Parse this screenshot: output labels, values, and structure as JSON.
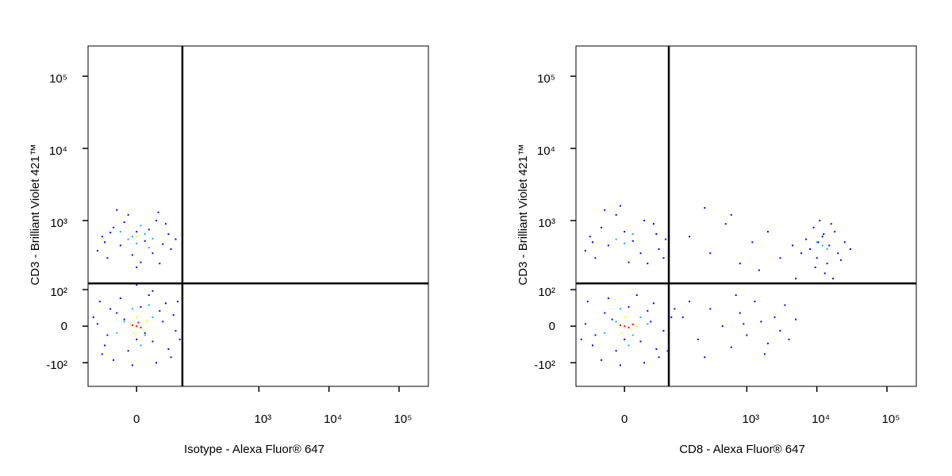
{
  "chart_data": [
    {
      "type": "scatter",
      "xlabel": "Isotype - Alexa Fluor® 647",
      "ylabel": "CD3 - Brilliant Violet 421™",
      "xlim": [
        -85,
        262144
      ],
      "ylim": [
        -230,
        262144
      ],
      "xticks": [
        0,
        {
          "value": 1000,
          "label": "10³"
        },
        {
          "value": 10000,
          "label": "10⁴"
        },
        {
          "value": 100000,
          "label": "10⁵"
        }
      ],
      "yticks": [
        {
          "value": -100,
          "label": "-10²"
        },
        0,
        {
          "value": 100,
          "label": "10²"
        },
        {
          "value": 1000,
          "label": "10³"
        },
        {
          "value": 10000,
          "label": "10⁴"
        },
        {
          "value": 100000,
          "label": "10⁵"
        }
      ],
      "gates": {
        "x": 77,
        "y": 126
      },
      "series": [
        {
          "color": "#0000ff",
          "x": [
            -40,
            -25,
            -10,
            5,
            20,
            35,
            50,
            -55,
            -30,
            15,
            40,
            -15,
            60,
            -45,
            25,
            0,
            -20,
            45,
            -60,
            30,
            10,
            -35,
            55,
            -5,
            20,
            70,
            -50,
            -70,
            65,
            0,
            -40,
            -20,
            0,
            20,
            40,
            -50,
            30,
            -10,
            10,
            50,
            -30,
            -60,
            25,
            5,
            -25,
            45,
            15,
            -45,
            60,
            -5,
            35,
            -15,
            0,
            -35,
            28
          ],
          "values": [
            -20,
            30,
            -60,
            45,
            -35,
            10,
            -80,
            60,
            -90,
            80,
            55,
            15,
            -10,
            -45,
            -100,
            -30,
            70,
            -55,
            5,
            35,
            -15,
            40,
            25,
            -110,
            95,
            -30,
            -70,
            20,
            60,
            120,
            300,
            450,
            700,
            350,
            900,
            600,
            250,
            1200,
            520,
            400,
            800,
            380,
            1000,
            260,
            1400,
            650,
            750,
            500,
            550,
            330,
            470,
            950,
            220,
            680,
            1300
          ]
        },
        {
          "color": "#00b4ff",
          "x": [
            -15,
            10,
            -5,
            20,
            -25,
            5,
            15,
            -10,
            10,
            0,
            -20,
            15,
            5,
            -5,
            20
          ],
          "values": [
            10,
            -20,
            40,
            20,
            -15,
            -45,
            50,
            550,
            650,
            480,
            700,
            420,
            850,
            600,
            560
          ]
        },
        {
          "color": "#ffff00",
          "x": [
            -8,
            8,
            0,
            -3,
            12,
            0
          ],
          "values": [
            5,
            -8,
            20,
            -15,
            12,
            600
          ]
        },
        {
          "color": "#ff0000",
          "x": [
            0,
            -5,
            5,
            2
          ],
          "values": [
            0,
            2,
            -3,
            8
          ]
        }
      ]
    },
    {
      "type": "scatter",
      "xlabel": "CD8 - Alexa Fluor® 647",
      "ylabel": "CD3 - Brilliant Violet 421™",
      "xlim": [
        -85,
        262144
      ],
      "ylim": [
        -230,
        262144
      ],
      "xticks": [
        0,
        {
          "value": 1000,
          "label": "10³"
        },
        {
          "value": 10000,
          "label": "10⁴"
        },
        {
          "value": 100000,
          "label": "10⁵"
        }
      ],
      "yticks": [
        {
          "value": -100,
          "label": "-10²"
        },
        0,
        {
          "value": 100,
          "label": "10²"
        },
        {
          "value": 1000,
          "label": "10³"
        },
        {
          "value": 10000,
          "label": "10⁴"
        },
        {
          "value": 100000,
          "label": "10⁵"
        }
      ],
      "gates": {
        "x": 73,
        "y": 126
      },
      "series": [
        {
          "color": "#0000ff",
          "x": [
            -40,
            -25,
            -10,
            5,
            20,
            35,
            50,
            -55,
            -30,
            15,
            40,
            -15,
            60,
            -45,
            25,
            0,
            -20,
            45,
            -60,
            30,
            80,
            -70,
            70,
            -5,
            90,
            -40,
            -20,
            0,
            20,
            40,
            -50,
            30,
            -10,
            10,
            50,
            -30,
            -60,
            25,
            5,
            -25,
            45,
            65,
            -45,
            60,
            -5,
            8000,
            10000,
            12000,
            15000,
            20000,
            9000,
            14000,
            25000,
            11000,
            7000,
            18000,
            13000,
            30000,
            16000,
            10500,
            22000,
            6000,
            17000,
            12500,
            9500,
            120,
            200,
            300,
            450,
            600,
            800,
            1000,
            1300,
            1600,
            2000,
            2500,
            3000,
            3500,
            4000,
            5000,
            700,
            250,
            1800,
            900,
            150,
            150,
            300,
            500,
            800,
            1200,
            2000,
            3000,
            4500,
            600,
            250,
            5000,
            1500
          ],
          "values": [
            -20,
            30,
            -60,
            45,
            -35,
            10,
            -80,
            60,
            -90,
            80,
            55,
            15,
            -10,
            -45,
            -100,
            -30,
            70,
            -55,
            5,
            35,
            20,
            -30,
            -60,
            -110,
            40,
            300,
            450,
            700,
            350,
            900,
            600,
            250,
            1200,
            520,
            400,
            800,
            380,
            1000,
            260,
            1400,
            650,
            550,
            500,
            300,
            1600,
            400,
            300,
            600,
            450,
            350,
            800,
            250,
            500,
            1000,
            550,
            700,
            180,
            400,
            900,
            500,
            280,
            350,
            150,
            650,
            220,
            20,
            -30,
            40,
            0,
            -50,
            30,
            -20,
            60,
            10,
            -40,
            20,
            -10,
            50,
            -30,
            15,
            80,
            -80,
            -70,
            5,
            60,
            600,
            350,
            900,
            250,
            500,
            700,
            300,
            450,
            1200,
            1500,
            150,
            200
          ]
        },
        {
          "color": "#00b4ff",
          "x": [
            -10,
            10,
            -5,
            20,
            -25,
            5,
            30,
            -10,
            10,
            0,
            12000,
            14000,
            10000
          ],
          "values": [
            10,
            -20,
            40,
            20,
            -15,
            -45,
            5,
            550,
            650,
            480,
            450,
            400,
            500
          ]
        },
        {
          "color": "#ffff00",
          "x": [
            -8,
            8,
            0,
            -3,
            15
          ],
          "values": [
            5,
            -8,
            20,
            -15,
            0
          ]
        },
        {
          "color": "#ff0000",
          "x": [
            0,
            -5,
            5,
            10
          ],
          "values": [
            0,
            2,
            -3,
            4
          ]
        }
      ]
    }
  ]
}
